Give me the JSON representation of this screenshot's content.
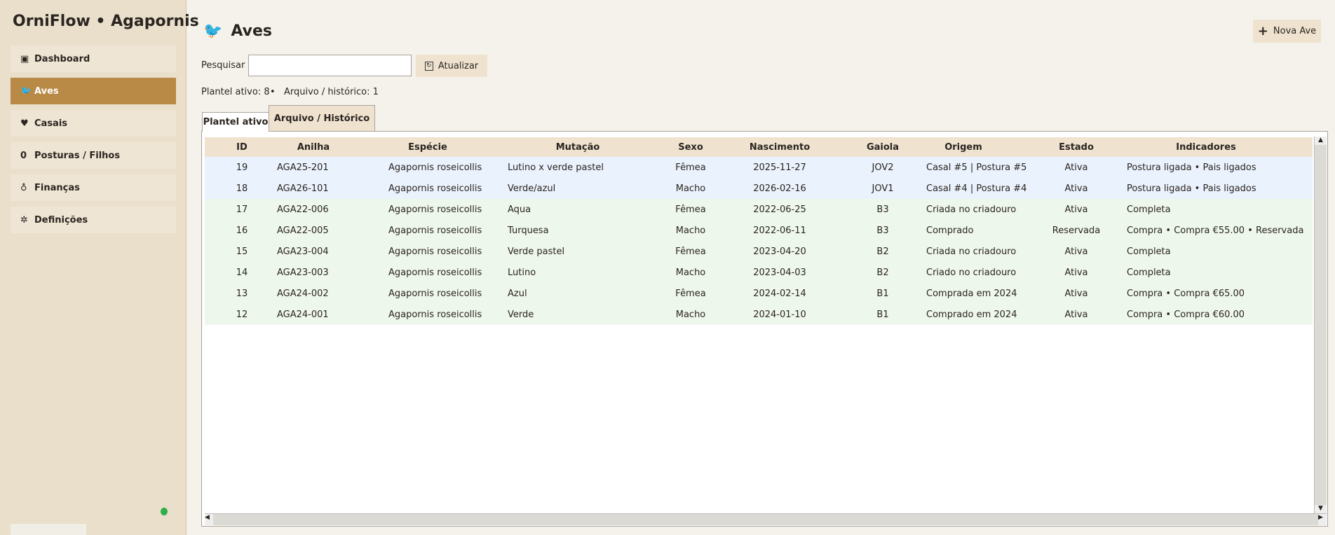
{
  "app": {
    "title": "OrniFlow • Agapornis"
  },
  "sidebar": {
    "items": [
      {
        "label": "Dashboard",
        "icon": "dashboard-icon",
        "glyph": "▣"
      },
      {
        "label": "Aves",
        "icon": "bird-icon",
        "glyph": "🐦"
      },
      {
        "label": "Casais",
        "icon": "heart-icon",
        "glyph": "♥"
      },
      {
        "label": "Posturas / Filhos",
        "icon": "egg-icon",
        "glyph": "0"
      },
      {
        "label": "Finanças",
        "icon": "money-bag-icon",
        "glyph": "♁"
      },
      {
        "label": "Definições",
        "icon": "gear-icon",
        "glyph": "✲"
      }
    ],
    "active": "Aves",
    "status_color": "#2fae4a"
  },
  "header": {
    "title": "Aves",
    "new_button": "Nova Ave"
  },
  "search": {
    "label": "Pesquisar",
    "value": "",
    "refresh": "Atualizar"
  },
  "summary": {
    "active": "Plantel ativo: 8",
    "separator": "•",
    "archive": "Arquivo / histórico: 1"
  },
  "tabs": [
    {
      "label": "Plantel ativo",
      "selected": true
    },
    {
      "label": "Arquivo / Histórico",
      "selected": false
    }
  ],
  "table": {
    "columns": [
      "ID",
      "Anilha",
      "Espécie",
      "Mutação",
      "Sexo",
      "Nascimento",
      "Gaiola",
      "Origem",
      "Estado",
      "Indicadores"
    ],
    "rows": [
      [
        "19",
        "AGA25-201",
        "Agapornis roseicollis",
        "Lutino x verde pastel",
        "Fêmea",
        "2025-11-27",
        "JOV2",
        "Casal #5 | Postura #5",
        "Ativa",
        "Postura ligada • Pais ligados"
      ],
      [
        "18",
        "AGA26-101",
        "Agapornis roseicollis",
        "Verde/azul",
        "Macho",
        "2026-02-16",
        "JOV1",
        "Casal #4 | Postura #4",
        "Ativa",
        "Postura ligada • Pais ligados"
      ],
      [
        "17",
        "AGA22-006",
        "Agapornis roseicollis",
        "Aqua",
        "Fêmea",
        "2022-06-25",
        "B3",
        "Criada no criadouro",
        "Ativa",
        "Completa"
      ],
      [
        "16",
        "AGA22-005",
        "Agapornis roseicollis",
        "Turquesa",
        "Macho",
        "2022-06-11",
        "B3",
        "Comprado",
        "Reservada",
        "Compra • Compra €55.00 • Reservada"
      ],
      [
        "15",
        "AGA23-004",
        "Agapornis roseicollis",
        "Verde pastel",
        "Fêmea",
        "2023-04-20",
        "B2",
        "Criada no criadouro",
        "Ativa",
        "Completa"
      ],
      [
        "14",
        "AGA23-003",
        "Agapornis roseicollis",
        "Lutino",
        "Macho",
        "2023-04-03",
        "B2",
        "Criado no criadouro",
        "Ativa",
        "Completa"
      ],
      [
        "13",
        "AGA24-002",
        "Agapornis roseicollis",
        "Azul",
        "Fêmea",
        "2024-02-14",
        "B1",
        "Comprada em 2024",
        "Ativa",
        "Compra • Compra €65.00"
      ],
      [
        "12",
        "AGA24-001",
        "Agapornis roseicollis",
        "Verde",
        "Macho",
        "2024-01-10",
        "B1",
        "Comprado em 2024",
        "Ativa",
        "Compra • Compra €60.00"
      ]
    ],
    "row_colors": [
      "#eaf2fd",
      "#eaf2fd",
      "#eef7ec",
      "#eef7ec",
      "#eef7ec",
      "#eef7ec",
      "#eef7ec",
      "#eef7ec"
    ]
  }
}
